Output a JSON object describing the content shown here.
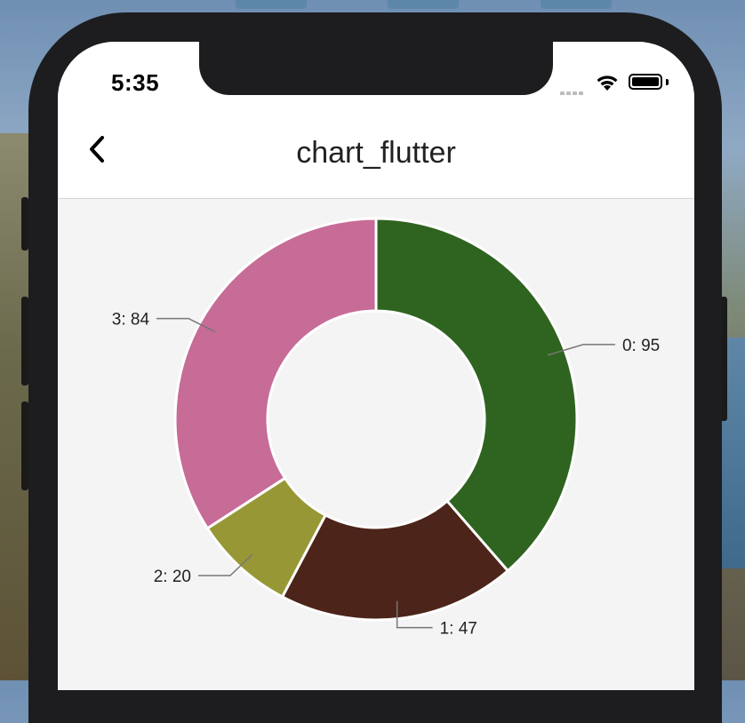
{
  "status_bar": {
    "time": "5:35"
  },
  "app_bar": {
    "title": "chart_flutter"
  },
  "chart_data": {
    "type": "pie",
    "categories": [
      "0",
      "1",
      "2",
      "3"
    ],
    "values": [
      95,
      47,
      20,
      84
    ],
    "labels": [
      "0: 95",
      "1: 47",
      "2: 20",
      "3: 84"
    ],
    "colors": [
      "#2f6420",
      "#4c2419",
      "#979835",
      "#c76b97"
    ],
    "donut": true,
    "title": ""
  }
}
